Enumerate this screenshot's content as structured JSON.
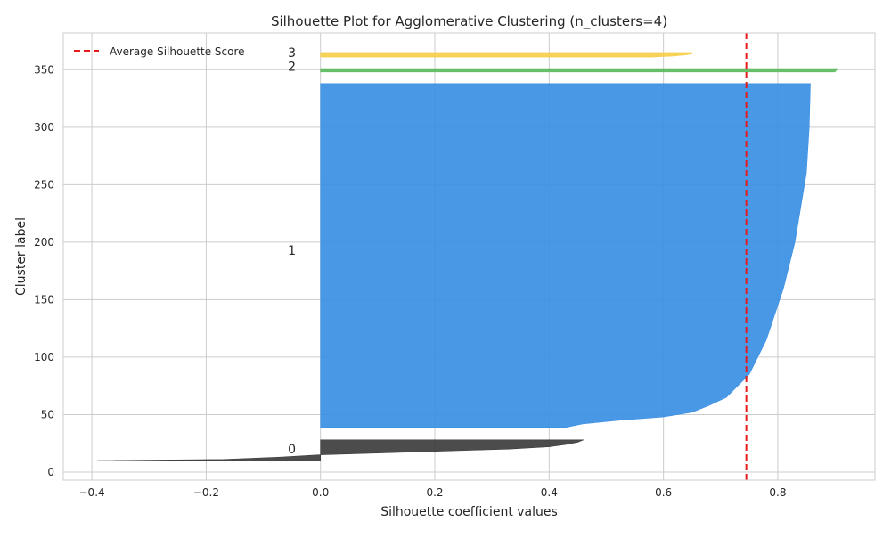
{
  "chart_data": {
    "type": "area",
    "title": "Silhouette Plot for Agglomerative Clustering (n_clusters=4)",
    "xlabel": "Silhouette coefficient values",
    "ylabel": "Cluster label",
    "xlim": [
      -0.45,
      0.97
    ],
    "ylim": [
      -7,
      382
    ],
    "xticks": [
      -0.4,
      -0.2,
      0.0,
      0.2,
      0.4,
      0.6,
      0.8
    ],
    "xtick_labels": [
      "−0.4",
      "−0.2",
      "0.0",
      "0.2",
      "0.4",
      "0.6",
      "0.8"
    ],
    "yticks": [
      0,
      50,
      100,
      150,
      200,
      250,
      300,
      350
    ],
    "ytick_labels": [
      "0",
      "50",
      "100",
      "150",
      "200",
      "250",
      "300",
      "350"
    ],
    "grid": true,
    "legend_position": "top-left",
    "legend": [
      {
        "label": "Average Silhouette Score",
        "color": "#e41a1c",
        "style": "dashed"
      }
    ],
    "average_silhouette_score": 0.745,
    "clusters": [
      {
        "label": "0",
        "color": "#3d3d3d",
        "y_lower": 10,
        "y_upper": 28,
        "label_y": 20,
        "profile": [
          [
            10,
            -0.39
          ],
          [
            11,
            -0.17
          ],
          [
            13,
            -0.07
          ],
          [
            15,
            0.0
          ],
          [
            18,
            0.2
          ],
          [
            20,
            0.33
          ],
          [
            22,
            0.4
          ],
          [
            24,
            0.43
          ],
          [
            26,
            0.45
          ],
          [
            28,
            0.46
          ]
        ]
      },
      {
        "label": "1",
        "color": "#3a8fe4",
        "y_lower": 39,
        "y_upper": 338,
        "label_y": 193,
        "profile": [
          [
            39,
            0.43
          ],
          [
            42,
            0.46
          ],
          [
            45,
            0.52
          ],
          [
            48,
            0.6
          ],
          [
            52,
            0.65
          ],
          [
            58,
            0.68
          ],
          [
            65,
            0.71
          ],
          [
            75,
            0.73
          ],
          [
            85,
            0.75
          ],
          [
            95,
            0.76
          ],
          [
            105,
            0.77
          ],
          [
            115,
            0.78
          ],
          [
            130,
            0.79
          ],
          [
            145,
            0.8
          ],
          [
            160,
            0.81
          ],
          [
            180,
            0.82
          ],
          [
            200,
            0.83
          ],
          [
            230,
            0.84
          ],
          [
            260,
            0.85
          ],
          [
            300,
            0.855
          ],
          [
            338,
            0.857
          ]
        ]
      },
      {
        "label": "2",
        "color": "#5cb85c",
        "y_lower": 348,
        "y_upper": 351,
        "label_y": 353,
        "profile": [
          [
            348,
            0.9
          ],
          [
            351,
            0.905
          ]
        ]
      },
      {
        "label": "3",
        "color": "#f5cf4a",
        "y_lower": 361,
        "y_upper": 365,
        "label_y": 365,
        "profile": [
          [
            361,
            0.58
          ],
          [
            362,
            0.62
          ],
          [
            363,
            0.64
          ],
          [
            364,
            0.65
          ],
          [
            365,
            0.65
          ]
        ]
      }
    ]
  }
}
